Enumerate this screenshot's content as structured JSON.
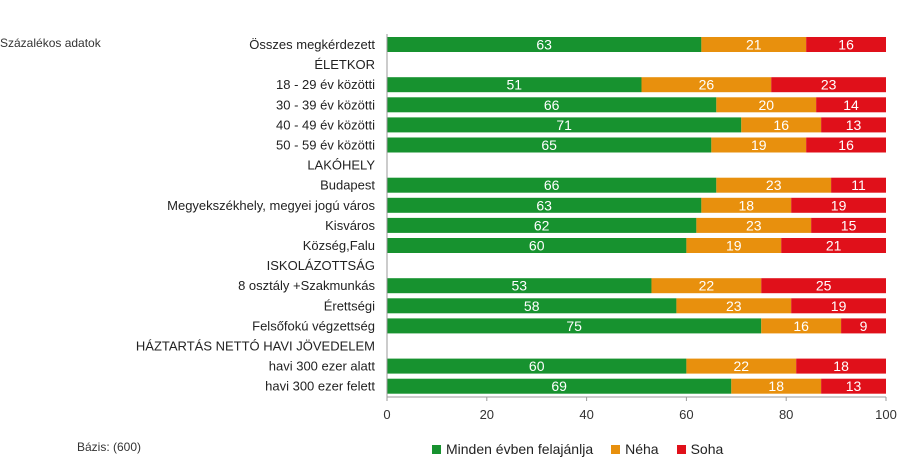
{
  "subtitle": "Százalékos adatok",
  "base_note": "Bázis: (600)",
  "colors": {
    "minden": "#17922f",
    "neha": "#e8900d",
    "soha": "#e0101a"
  },
  "chart_data": {
    "type": "bar",
    "orientation": "horizontal",
    "stacked": true,
    "xlim": [
      0,
      100
    ],
    "x_ticks": [
      "0",
      "20",
      "40",
      "60",
      "80",
      "100"
    ],
    "categories": [
      "Összes megkérdezett",
      "ÉLETKOR",
      "18 - 29 év közötti",
      "30 - 39 év közötti",
      "40 - 49 év közötti",
      "50 - 59 év közötti",
      "LAKÓHELY",
      "Budapest",
      "Megyekszékhely, megyei jogú város",
      "Kisváros",
      "Község,Falu",
      "ISKOLÁZOTTSÁG",
      "8 osztály +Szakmunkás",
      "Érettségi",
      "Felsőfokú végzettség",
      "HÁZTARTÁS NETTÓ HAVI JÖVEDELEM",
      "havi 300 ezer alatt",
      "havi 300 ezer felett"
    ],
    "series": [
      {
        "name": "Minden évben felajánlja",
        "color": "#17922f",
        "values": [
          63,
          null,
          51,
          66,
          71,
          65,
          null,
          66,
          63,
          62,
          60,
          null,
          53,
          58,
          75,
          null,
          60,
          69
        ]
      },
      {
        "name": "Néha",
        "color": "#e8900d",
        "values": [
          21,
          null,
          26,
          20,
          16,
          19,
          null,
          23,
          18,
          23,
          19,
          null,
          22,
          23,
          16,
          null,
          22,
          18
        ]
      },
      {
        "name": "Soha",
        "color": "#e0101a",
        "values": [
          16,
          null,
          23,
          14,
          13,
          16,
          null,
          11,
          19,
          15,
          21,
          null,
          25,
          19,
          9,
          null,
          18,
          13
        ]
      }
    ],
    "grid": false,
    "legend_position": "bottom"
  }
}
